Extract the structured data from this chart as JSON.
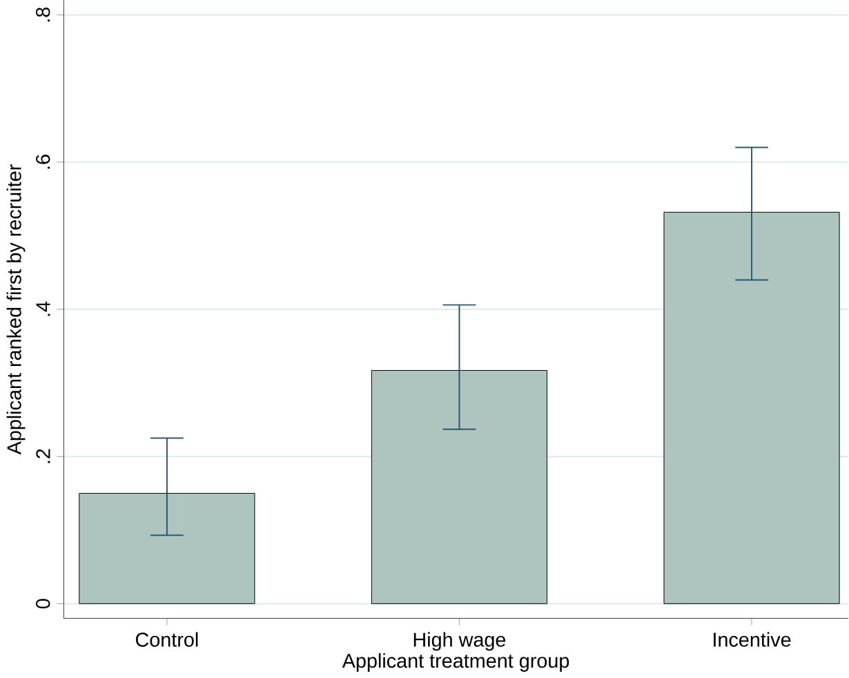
{
  "chart_data": {
    "type": "bar",
    "xlabel": "Applicant treatment group",
    "ylabel": "Applicant ranked first by recruiter",
    "categories": [
      "Control",
      "High wage",
      "Incentive"
    ],
    "values": [
      0.15,
      0.317,
      0.532
    ],
    "errors": [
      [
        0.093,
        0.225
      ],
      [
        0.237,
        0.406
      ],
      [
        0.44,
        0.62
      ]
    ],
    "color": "#adc4bf",
    "ylim": [
      -0.02,
      0.82
    ],
    "yticks": [
      {
        "value": 0,
        "label": "0"
      },
      {
        "value": 0.2,
        "label": ".2"
      },
      {
        "value": 0.4,
        "label": ".4"
      },
      {
        "value": 0.6,
        "label": ".6"
      },
      {
        "value": 0.8,
        "label": ".8"
      }
    ],
    "grid": "y"
  }
}
